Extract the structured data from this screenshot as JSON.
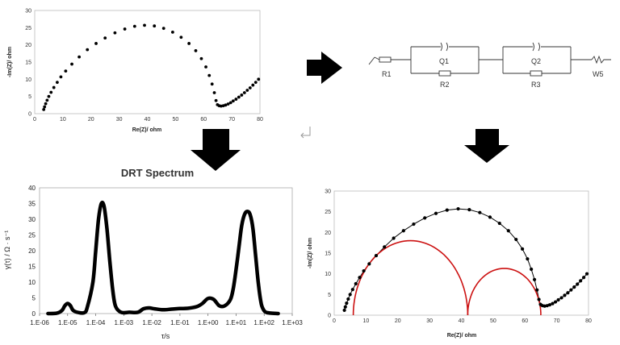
{
  "nyquist_top": {
    "xlabel": "Re(Z)/ ohm",
    "ylabel": "-Im(Z)/ ohm",
    "x_ticks": [
      "0",
      "10",
      "20",
      "30",
      "40",
      "50",
      "60",
      "70",
      "80"
    ],
    "y_ticks": [
      "0",
      "5",
      "10",
      "15",
      "20",
      "25",
      "30"
    ]
  },
  "circuit": {
    "labels": [
      "R1",
      "Q1",
      "R2",
      "Q2",
      "R3",
      "W5"
    ]
  },
  "drt": {
    "title": "DRT Spectrum",
    "xlabel": "τ/s",
    "ylabel": "γ(τ) / Ω · s⁻¹",
    "x_ticks": [
      "1.E-06",
      "1.E-05",
      "1.E-04",
      "1.E-03",
      "1.E-02",
      "1.E-01",
      "1.E+00",
      "1.E+01",
      "1.E+02",
      "1.E+03"
    ],
    "y_ticks": [
      "0",
      "5",
      "10",
      "15",
      "20",
      "25",
      "30",
      "35",
      "40"
    ]
  },
  "nyquist_fit": {
    "xlabel": "Re(Z)/ ohm",
    "ylabel": "-Im(Z)/ ohm",
    "x_ticks": [
      "0",
      "10",
      "20",
      "30",
      "40",
      "50",
      "60",
      "70",
      "80"
    ],
    "y_ticks": [
      "0",
      "5",
      "10",
      "15",
      "20",
      "25",
      "30"
    ]
  },
  "chart_data": [
    {
      "type": "scatter",
      "name_key": "nyquist_top",
      "xlim": [
        0,
        80
      ],
      "ylim": [
        0,
        30
      ],
      "center": [
        34.5,
        0
      ],
      "radius": 31.5,
      "arc_x": [
        3.2,
        3.5,
        3.9,
        4.4,
        5.0,
        5.8,
        6.8,
        8.0,
        9.3,
        11.0,
        13.2,
        15.8,
        18.7,
        21.8,
        25.0,
        28.5,
        32.0,
        35.5,
        39.0,
        42.5,
        45.8,
        49.0,
        52.0,
        54.8,
        57.2,
        59.2,
        60.8,
        62.0,
        63.0,
        63.8,
        64.4,
        64.9
      ],
      "arc_y": [
        1.2,
        2.0,
        2.9,
        3.9,
        5.0,
        6.2,
        7.6,
        9.1,
        10.7,
        12.4,
        14.4,
        16.5,
        18.6,
        20.4,
        22.0,
        23.5,
        24.6,
        25.4,
        25.7,
        25.5,
        24.8,
        23.7,
        22.2,
        20.4,
        18.3,
        16.0,
        13.6,
        11.1,
        8.6,
        6.1,
        3.8,
        2.6
      ],
      "tail_x": [
        65.5,
        66.2,
        67.0,
        67.8,
        68.7,
        69.6,
        70.5,
        71.5,
        72.5,
        73.5,
        74.5,
        75.5,
        76.5,
        77.5,
        78.5,
        79.5
      ],
      "tail_y": [
        2.3,
        2.2,
        2.3,
        2.5,
        2.8,
        3.2,
        3.7,
        4.2,
        4.8,
        5.4,
        6.1,
        6.8,
        7.5,
        8.3,
        9.1,
        10.0
      ]
    },
    {
      "type": "line",
      "name_key": "drt",
      "x_log10": [
        -5.7,
        -5.4,
        -5.2,
        -5.1,
        -5.0,
        -4.9,
        -4.8,
        -4.6,
        -4.4,
        -4.3,
        -4.1,
        -4.0,
        -3.9,
        -3.8,
        -3.7,
        -3.6,
        -3.5,
        -3.4,
        -3.3,
        -3.1,
        -2.8,
        -2.5,
        -2.3,
        -2.1,
        -1.9,
        -1.6,
        -1.3,
        -1.0,
        -0.7,
        -0.4,
        -0.2,
        0.0,
        0.2,
        0.4,
        0.6,
        0.8,
        0.9,
        1.0,
        1.1,
        1.2,
        1.3,
        1.4,
        1.5,
        1.6,
        1.7,
        1.8,
        1.9,
        2.0,
        2.1,
        2.3,
        2.5
      ],
      "y": [
        0.0,
        0.1,
        1.0,
        2.5,
        3.2,
        2.5,
        1.0,
        0.3,
        0.3,
        2.0,
        10.0,
        20.0,
        30.0,
        35.0,
        34.0,
        27.0,
        17.0,
        8.0,
        2.5,
        0.4,
        0.4,
        0.4,
        1.5,
        1.8,
        1.5,
        1.2,
        1.4,
        1.6,
        1.7,
        2.2,
        3.2,
        4.8,
        4.5,
        2.5,
        2.5,
        4.5,
        8.0,
        14.0,
        21.0,
        28.0,
        31.5,
        32.5,
        31.5,
        27.0,
        18.0,
        9.0,
        3.0,
        0.9,
        0.3,
        0.1,
        0.0
      ],
      "xlim_log10": [
        -6,
        3
      ],
      "ylim": [
        0,
        40
      ]
    },
    {
      "type": "scatter",
      "name_key": "nyquist_fit",
      "xlim": [
        0,
        80
      ],
      "ylim": [
        0,
        30
      ],
      "fit_arc": {
        "center": [
          34.5,
          0
        ],
        "radius": 31.5
      },
      "arc_x": [
        3.2,
        3.5,
        3.9,
        4.4,
        5.0,
        5.8,
        6.8,
        8.0,
        9.3,
        11.0,
        13.2,
        15.8,
        18.7,
        21.8,
        25.0,
        28.5,
        32.0,
        35.5,
        39.0,
        42.5,
        45.8,
        49.0,
        52.0,
        54.8,
        57.2,
        59.2,
        60.8,
        62.0,
        63.0,
        63.8,
        64.4,
        64.9
      ],
      "arc_y": [
        1.2,
        2.0,
        2.9,
        3.9,
        5.0,
        6.2,
        7.6,
        9.1,
        10.7,
        12.4,
        14.4,
        16.5,
        18.6,
        20.4,
        22.0,
        23.5,
        24.6,
        25.4,
        25.7,
        25.5,
        24.8,
        23.7,
        22.2,
        20.4,
        18.3,
        16.0,
        13.6,
        11.1,
        8.6,
        6.1,
        3.8,
        2.6
      ],
      "tail_x": [
        65.5,
        66.2,
        67.0,
        67.8,
        68.7,
        69.6,
        70.5,
        71.5,
        72.5,
        73.5,
        74.5,
        75.5,
        76.5,
        77.5,
        78.5,
        79.5
      ],
      "tail_y": [
        2.3,
        2.2,
        2.3,
        2.5,
        2.8,
        3.2,
        3.7,
        4.2,
        4.8,
        5.4,
        6.1,
        6.8,
        7.5,
        8.3,
        9.1,
        10.0
      ],
      "semicircles": [
        {
          "x0": 6.0,
          "x1": 42.0,
          "peak": 18.0
        },
        {
          "x0": 42.0,
          "x1": 65.0,
          "peak": 11.3
        }
      ]
    }
  ],
  "colors": {
    "fit_red": "#cc1111",
    "black": "#000000",
    "axis": "#888888"
  }
}
